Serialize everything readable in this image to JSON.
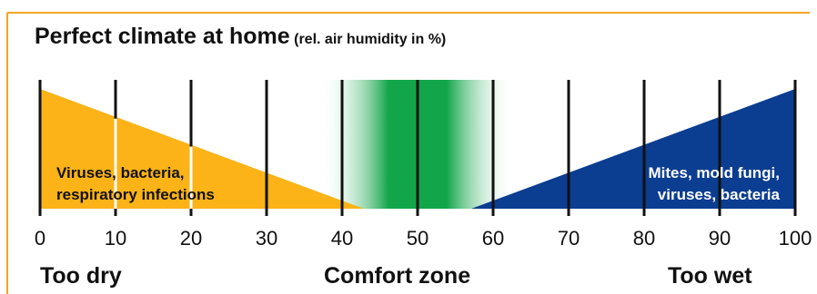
{
  "title": "Perfect climate at home",
  "subtitle": "(rel. air humidity in %)",
  "axis_ticks": [
    "0",
    "10",
    "20",
    "30",
    "40",
    "50",
    "60",
    "70",
    "80",
    "90",
    "100"
  ],
  "dry_label_line1": "Viruses, bacteria,",
  "dry_label_line2": "respiratory infections",
  "wet_label_line1": "Mites, mold fungi,",
  "wet_label_line2": "viruses, bacteria",
  "zones": {
    "dry": "Too dry",
    "comfort": "Comfort zone",
    "wet": "Too wet"
  },
  "colors": {
    "border": "#f5a623",
    "dry": "#fbb317",
    "wet": "#0b3d91",
    "comfort": "#13a54a",
    "text": "#111111"
  }
}
